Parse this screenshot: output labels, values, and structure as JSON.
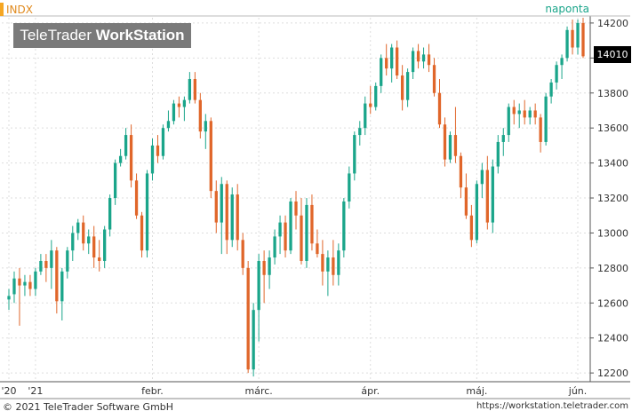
{
  "header": {
    "ticker": "INDX",
    "period": "naponta",
    "brand_light": "TeleTrader ",
    "brand_bold": "WorkStation",
    "last_value": "14010"
  },
  "footer": {
    "copyright": "© 2021 TeleTrader Software GmbH",
    "url": "https://workstation.teletrader.com"
  },
  "colors": {
    "up": "#1aa58a",
    "down": "#e0662a",
    "grid": "#dddddd",
    "axis": "#555555"
  },
  "chart_data": {
    "type": "candlestick",
    "ylim": [
      12150,
      14230
    ],
    "yticks": [
      12200,
      12400,
      12600,
      12800,
      13000,
      13200,
      13400,
      13600,
      13800,
      14000,
      14200
    ],
    "xtick_labels": [
      "'20",
      "'21",
      "febr.",
      "márc.",
      "ápr.",
      "máj.",
      "jún."
    ],
    "xtick_index": [
      0,
      5,
      27,
      47,
      68,
      88,
      107
    ],
    "grid": true,
    "candles": [
      [
        12620,
        12680,
        12560,
        12640
      ],
      [
        12650,
        12780,
        12600,
        12740
      ],
      [
        12740,
        12800,
        12470,
        12700
      ],
      [
        12700,
        12760,
        12640,
        12720
      ],
      [
        12720,
        12760,
        12640,
        12680
      ],
      [
        12680,
        12800,
        12640,
        12780
      ],
      [
        12780,
        12880,
        12760,
        12840
      ],
      [
        12840,
        12880,
        12720,
        12800
      ],
      [
        12800,
        12960,
        12680,
        12900
      ],
      [
        12900,
        12920,
        12540,
        12610
      ],
      [
        12610,
        12800,
        12500,
        12780
      ],
      [
        12780,
        12920,
        12740,
        12900
      ],
      [
        12900,
        13040,
        12840,
        13000
      ],
      [
        13000,
        13080,
        12960,
        13060
      ],
      [
        13060,
        13100,
        12900,
        12940
      ],
      [
        12940,
        13020,
        12880,
        12980
      ],
      [
        12980,
        13040,
        12800,
        12860
      ],
      [
        12860,
        12960,
        12780,
        12840
      ],
      [
        12840,
        13040,
        12800,
        13020
      ],
      [
        13020,
        13220,
        12980,
        13200
      ],
      [
        13200,
        13420,
        13160,
        13400
      ],
      [
        13400,
        13480,
        13380,
        13440
      ],
      [
        13440,
        13600,
        13420,
        13560
      ],
      [
        13560,
        13620,
        13260,
        13300
      ],
      [
        13300,
        13340,
        13080,
        13100
      ],
      [
        13100,
        13120,
        12860,
        12900
      ],
      [
        12900,
        13360,
        12860,
        13340
      ],
      [
        13340,
        13540,
        13300,
        13500
      ],
      [
        13500,
        13560,
        13400,
        13440
      ],
      [
        13440,
        13620,
        13420,
        13600
      ],
      [
        13600,
        13700,
        13580,
        13640
      ],
      [
        13640,
        13760,
        13620,
        13740
      ],
      [
        13740,
        13780,
        13660,
        13720
      ],
      [
        13720,
        13780,
        13640,
        13760
      ],
      [
        13760,
        13920,
        13740,
        13880
      ],
      [
        13880,
        13920,
        13740,
        13760
      ],
      [
        13760,
        13800,
        13540,
        13580
      ],
      [
        13580,
        13680,
        13480,
        13640
      ],
      [
        13640,
        13660,
        13200,
        13240
      ],
      [
        13240,
        13300,
        13000,
        13060
      ],
      [
        13060,
        13320,
        12880,
        13280
      ],
      [
        13280,
        13300,
        12880,
        12960
      ],
      [
        12960,
        13260,
        12920,
        13220
      ],
      [
        13220,
        13280,
        12900,
        12960
      ],
      [
        12960,
        13000,
        12760,
        12800
      ],
      [
        12800,
        12840,
        12200,
        12220
      ],
      [
        12220,
        12600,
        12180,
        12560
      ],
      [
        12560,
        12880,
        12380,
        12840
      ],
      [
        12840,
        12900,
        12600,
        12760
      ],
      [
        12760,
        12900,
        12680,
        12860
      ],
      [
        12860,
        13020,
        12820,
        12980
      ],
      [
        12980,
        13100,
        12880,
        13060
      ],
      [
        13060,
        13100,
        12860,
        12900
      ],
      [
        12900,
        13200,
        12880,
        13180
      ],
      [
        13180,
        13240,
        13020,
        13100
      ],
      [
        13100,
        13200,
        12820,
        12840
      ],
      [
        12840,
        13200,
        12800,
        13160
      ],
      [
        13160,
        13220,
        12900,
        12940
      ],
      [
        12940,
        13020,
        12860,
        12880
      ],
      [
        12880,
        12960,
        12700,
        12780
      ],
      [
        12780,
        12900,
        12640,
        12860
      ],
      [
        12860,
        12960,
        12700,
        12760
      ],
      [
        12760,
        12940,
        12700,
        12900
      ],
      [
        12900,
        13200,
        12860,
        13180
      ],
      [
        13180,
        13380,
        13140,
        13340
      ],
      [
        13340,
        13580,
        13300,
        13560
      ],
      [
        13560,
        13640,
        13500,
        13600
      ],
      [
        13600,
        13780,
        13560,
        13740
      ],
      [
        13740,
        13840,
        13680,
        13720
      ],
      [
        13720,
        13860,
        13700,
        13840
      ],
      [
        13840,
        14020,
        13800,
        14000
      ],
      [
        14000,
        14080,
        13900,
        13940
      ],
      [
        13940,
        14080,
        13860,
        14060
      ],
      [
        14060,
        14100,
        13880,
        13900
      ],
      [
        13900,
        13960,
        13700,
        13760
      ],
      [
        13760,
        13940,
        13720,
        13920
      ],
      [
        13920,
        14060,
        13880,
        14040
      ],
      [
        14040,
        14080,
        13940,
        13980
      ],
      [
        13980,
        14060,
        13940,
        14020
      ],
      [
        14020,
        14080,
        13920,
        13960
      ],
      [
        13960,
        14000,
        13780,
        13800
      ],
      [
        13800,
        13880,
        13600,
        13620
      ],
      [
        13620,
        13660,
        13380,
        13420
      ],
      [
        13420,
        13580,
        13400,
        13560
      ],
      [
        13560,
        13720,
        13400,
        13440
      ],
      [
        13440,
        13460,
        13200,
        13260
      ],
      [
        13260,
        13340,
        13080,
        13100
      ],
      [
        13100,
        13160,
        12920,
        12960
      ],
      [
        12960,
        13300,
        12940,
        13280
      ],
      [
        13280,
        13400,
        13200,
        13360
      ],
      [
        13360,
        13440,
        13020,
        13060
      ],
      [
        13060,
        13420,
        13000,
        13380
      ],
      [
        13380,
        13560,
        13340,
        13520
      ],
      [
        13520,
        13600,
        13440,
        13560
      ],
      [
        13560,
        13740,
        13520,
        13720
      ],
      [
        13720,
        13760,
        13620,
        13680
      ],
      [
        13680,
        13740,
        13600,
        13700
      ],
      [
        13700,
        13760,
        13620,
        13660
      ],
      [
        13660,
        13720,
        13620,
        13700
      ],
      [
        13700,
        13740,
        13620,
        13660
      ],
      [
        13660,
        13680,
        13460,
        13520
      ],
      [
        13520,
        13800,
        13500,
        13780
      ],
      [
        13780,
        13880,
        13740,
        13860
      ],
      [
        13860,
        13980,
        13820,
        13960
      ],
      [
        13960,
        14020,
        13880,
        14000
      ],
      [
        14000,
        14180,
        13980,
        14160
      ],
      [
        14160,
        14220,
        14020,
        14060
      ],
      [
        14060,
        14220,
        14020,
        14200
      ],
      [
        14200,
        14230,
        14000,
        14010
      ]
    ]
  }
}
